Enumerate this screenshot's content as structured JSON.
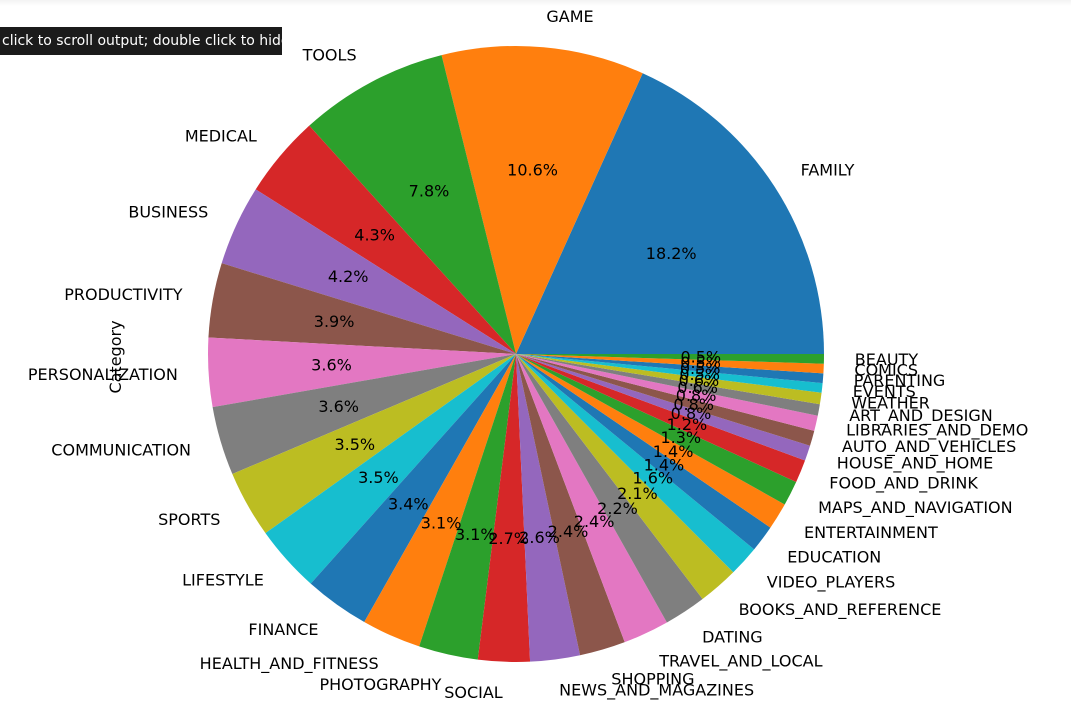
{
  "notebook": {
    "tooltip": "click to scroll output; double click to hide"
  },
  "chart_data": {
    "type": "pie",
    "ylabel": "Category",
    "start_angle_deg": 0,
    "direction": "counterclockwise",
    "slices": [
      {
        "label": "FAMILY",
        "pct": 18.2,
        "color": "#1f77b4"
      },
      {
        "label": "GAME",
        "pct": 10.6,
        "color": "#ff7f0e"
      },
      {
        "label": "TOOLS",
        "pct": 7.8,
        "color": "#2ca02c"
      },
      {
        "label": "MEDICAL",
        "pct": 4.3,
        "color": "#d62728"
      },
      {
        "label": "BUSINESS",
        "pct": 4.2,
        "color": "#9467bd"
      },
      {
        "label": "PRODUCTIVITY",
        "pct": 3.9,
        "color": "#8c564b"
      },
      {
        "label": "PERSONALIZATION",
        "pct": 3.6,
        "color": "#e377c2"
      },
      {
        "label": "COMMUNICATION",
        "pct": 3.6,
        "color": "#7f7f7f"
      },
      {
        "label": "SPORTS",
        "pct": 3.5,
        "color": "#bcbd22"
      },
      {
        "label": "LIFESTYLE",
        "pct": 3.5,
        "color": "#17becf"
      },
      {
        "label": "FINANCE",
        "pct": 3.4,
        "color": "#1f77b4"
      },
      {
        "label": "HEALTH_AND_FITNESS",
        "pct": 3.1,
        "color": "#ff7f0e"
      },
      {
        "label": "PHOTOGRAPHY",
        "pct": 3.1,
        "color": "#2ca02c"
      },
      {
        "label": "SOCIAL",
        "pct": 2.7,
        "color": "#d62728"
      },
      {
        "label": "NEWS_AND_MAGAZINES",
        "pct": 2.6,
        "color": "#9467bd"
      },
      {
        "label": "SHOPPING",
        "pct": 2.4,
        "color": "#8c564b"
      },
      {
        "label": "TRAVEL_AND_LOCAL",
        "pct": 2.4,
        "color": "#e377c2"
      },
      {
        "label": "DATING",
        "pct": 2.2,
        "color": "#7f7f7f"
      },
      {
        "label": "BOOKS_AND_REFERENCE",
        "pct": 2.1,
        "color": "#bcbd22"
      },
      {
        "label": "VIDEO_PLAYERS",
        "pct": 1.6,
        "color": "#17becf"
      },
      {
        "label": "EDUCATION",
        "pct": 1.4,
        "color": "#1f77b4"
      },
      {
        "label": "ENTERTAINMENT",
        "pct": 1.4,
        "color": "#ff7f0e"
      },
      {
        "label": "MAPS_AND_NAVIGATION",
        "pct": 1.3,
        "color": "#2ca02c"
      },
      {
        "label": "FOOD_AND_DRINK",
        "pct": 1.2,
        "color": "#d62728"
      },
      {
        "label": "HOUSE_AND_HOME",
        "pct": 0.8,
        "color": "#9467bd"
      },
      {
        "label": "AUTO_AND_VEHICLES",
        "pct": 0.8,
        "color": "#8c564b"
      },
      {
        "label": "LIBRARIES_AND_DEMO",
        "pct": 0.8,
        "color": "#e377c2"
      },
      {
        "label": "ART_AND_DESIGN",
        "pct": 0.6,
        "color": "#7f7f7f"
      },
      {
        "label": "WEATHER",
        "pct": 0.6,
        "color": "#bcbd22"
      },
      {
        "label": "EVENTS",
        "pct": 0.5,
        "color": "#17becf"
      },
      {
        "label": "PARENTING",
        "pct": 0.5,
        "color": "#1f77b4"
      },
      {
        "label": "COMICS",
        "pct": 0.5,
        "color": "#ff7f0e"
      },
      {
        "label": "BEAUTY",
        "pct": 0.5,
        "color": "#2ca02c"
      }
    ]
  }
}
